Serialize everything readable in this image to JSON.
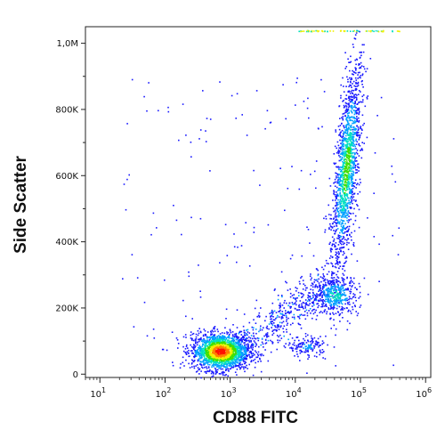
{
  "chart_data": {
    "type": "scatter",
    "subtype": "density-dot-plot",
    "title": "",
    "xlabel": "CD88 FITC",
    "ylabel": "Side Scatter",
    "x_scale": "log",
    "xlim": [
      6,
      1200000
    ],
    "ylim": [
      -10000,
      1050000
    ],
    "x_ticks": [
      {
        "value": 10,
        "base": "10",
        "exp": "1"
      },
      {
        "value": 100,
        "base": "10",
        "exp": "2"
      },
      {
        "value": 1000,
        "base": "10",
        "exp": "3"
      },
      {
        "value": 10000,
        "base": "10",
        "exp": "4"
      },
      {
        "value": 100000,
        "base": "10",
        "exp": "5"
      },
      {
        "value": 1000000,
        "base": "10",
        "exp": "6"
      }
    ],
    "y_ticks": [
      {
        "value": 0,
        "label": "0"
      },
      {
        "value": 200000,
        "label": "200K"
      },
      {
        "value": 400000,
        "label": "400K"
      },
      {
        "value": 600000,
        "label": "600K"
      },
      {
        "value": 800000,
        "label": "800K"
      },
      {
        "value": 1000000,
        "label": "1,0M"
      }
    ],
    "color_scale": [
      "#1a1aff",
      "#00a0ff",
      "#00e0c0",
      "#40e000",
      "#f0f000",
      "#ff8000",
      "#ff1000"
    ],
    "populations": [
      {
        "x_center": 700,
        "y_center": 70000,
        "spread_x": 0.22,
        "spread_y": 28000,
        "count": 1800,
        "peak": "red"
      },
      {
        "x_center": 60000,
        "y_center": 620000,
        "spread_x": 0.09,
        "spread_y": 160000,
        "count": 1500,
        "peak": "green"
      },
      {
        "x_center": 40000,
        "y_center": 240000,
        "spread_x": 0.18,
        "spread_y": 30000,
        "count": 400,
        "peak": "cyan"
      },
      {
        "x_center": 15000,
        "y_center": 85000,
        "spread_x": 0.15,
        "spread_y": 15000,
        "count": 150,
        "peak": "blue"
      }
    ]
  }
}
